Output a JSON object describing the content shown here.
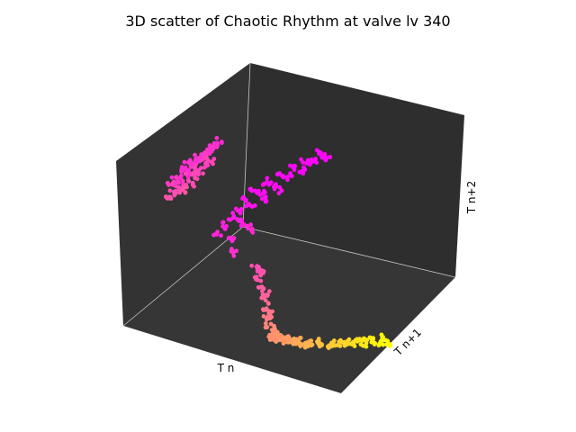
{
  "chart_data": {
    "type": "scatter",
    "projection": "3d",
    "title": "3D scatter of Chaotic Rhythm at valve lv 340",
    "xlabel": "T n",
    "ylabel": "T n+1",
    "zlabel": "T n+2",
    "tick_labels_shown": false,
    "pane_color": "#333333",
    "grid": false,
    "colormap": "spring",
    "colormap_stops": [
      "#ff00ff",
      "#ff8080",
      "#ffff00"
    ],
    "series": [
      {
        "cluster": "left-sheet",
        "points": [
          [
            0.1,
            0.42,
            0.78,
            0.18
          ],
          [
            0.12,
            0.44,
            0.8,
            0.2
          ],
          [
            0.14,
            0.46,
            0.82,
            0.22
          ],
          [
            0.16,
            0.48,
            0.84,
            0.2
          ],
          [
            0.08,
            0.4,
            0.74,
            0.16
          ],
          [
            0.06,
            0.38,
            0.7,
            0.18
          ],
          [
            0.11,
            0.43,
            0.76,
            0.21
          ],
          [
            0.13,
            0.45,
            0.79,
            0.19
          ],
          [
            0.15,
            0.47,
            0.81,
            0.23
          ],
          [
            0.09,
            0.41,
            0.72,
            0.17
          ],
          [
            0.07,
            0.39,
            0.68,
            0.22
          ],
          [
            0.05,
            0.36,
            0.66,
            0.24
          ],
          [
            0.12,
            0.44,
            0.73,
            0.25
          ],
          [
            0.1,
            0.42,
            0.7,
            0.26
          ],
          [
            0.14,
            0.46,
            0.76,
            0.24
          ],
          [
            0.16,
            0.49,
            0.78,
            0.27
          ],
          [
            0.08,
            0.37,
            0.64,
            0.28
          ],
          [
            0.06,
            0.35,
            0.62,
            0.3
          ],
          [
            0.11,
            0.4,
            0.67,
            0.29
          ],
          [
            0.13,
            0.43,
            0.71,
            0.28
          ],
          [
            0.17,
            0.5,
            0.86,
            0.19
          ],
          [
            0.18,
            0.51,
            0.88,
            0.18
          ],
          [
            0.04,
            0.34,
            0.6,
            0.32
          ],
          [
            0.09,
            0.38,
            0.63,
            0.33
          ]
        ]
      },
      {
        "cluster": "middle-sheet",
        "points": [
          [
            0.3,
            0.58,
            0.6,
            0.05
          ],
          [
            0.34,
            0.62,
            0.64,
            0.04
          ],
          [
            0.38,
            0.66,
            0.68,
            0.03
          ],
          [
            0.42,
            0.7,
            0.72,
            0.02
          ],
          [
            0.46,
            0.74,
            0.75,
            0.03
          ],
          [
            0.5,
            0.78,
            0.78,
            0.02
          ],
          [
            0.28,
            0.55,
            0.55,
            0.06
          ],
          [
            0.26,
            0.52,
            0.5,
            0.08
          ],
          [
            0.32,
            0.6,
            0.58,
            0.05
          ],
          [
            0.36,
            0.64,
            0.62,
            0.04
          ],
          [
            0.4,
            0.68,
            0.66,
            0.03
          ],
          [
            0.44,
            0.72,
            0.7,
            0.02
          ],
          [
            0.48,
            0.76,
            0.73,
            0.01
          ],
          [
            0.52,
            0.8,
            0.76,
            0.02
          ],
          [
            0.24,
            0.5,
            0.46,
            0.1
          ],
          [
            0.22,
            0.47,
            0.42,
            0.12
          ],
          [
            0.3,
            0.55,
            0.52,
            0.07
          ],
          [
            0.34,
            0.59,
            0.56,
            0.06
          ],
          [
            0.38,
            0.63,
            0.6,
            0.05
          ],
          [
            0.2,
            0.44,
            0.38,
            0.14
          ],
          [
            0.28,
            0.5,
            0.44,
            0.11
          ],
          [
            0.25,
            0.46,
            0.36,
            0.15
          ],
          [
            0.31,
            0.52,
            0.4,
            0.16
          ],
          [
            0.27,
            0.44,
            0.3,
            0.2
          ]
        ]
      },
      {
        "cluster": "descending-trail",
        "points": [
          [
            0.4,
            0.4,
            0.28,
            0.3
          ],
          [
            0.42,
            0.38,
            0.24,
            0.33
          ],
          [
            0.44,
            0.36,
            0.2,
            0.36
          ],
          [
            0.46,
            0.34,
            0.16,
            0.4
          ],
          [
            0.48,
            0.32,
            0.12,
            0.44
          ],
          [
            0.5,
            0.3,
            0.08,
            0.48
          ],
          [
            0.52,
            0.28,
            0.05,
            0.52
          ],
          [
            0.54,
            0.27,
            0.03,
            0.55
          ],
          [
            0.43,
            0.39,
            0.26,
            0.32
          ],
          [
            0.47,
            0.35,
            0.18,
            0.38
          ],
          [
            0.51,
            0.31,
            0.1,
            0.46
          ]
        ]
      },
      {
        "cluster": "lower-arm",
        "points": [
          [
            0.55,
            0.25,
            0.02,
            0.56
          ],
          [
            0.58,
            0.24,
            0.02,
            0.58
          ],
          [
            0.62,
            0.24,
            0.02,
            0.62
          ],
          [
            0.66,
            0.25,
            0.02,
            0.66
          ],
          [
            0.7,
            0.26,
            0.02,
            0.7
          ],
          [
            0.74,
            0.28,
            0.03,
            0.74
          ],
          [
            0.78,
            0.3,
            0.03,
            0.78
          ],
          [
            0.82,
            0.32,
            0.04,
            0.82
          ],
          [
            0.86,
            0.34,
            0.05,
            0.86
          ],
          [
            0.9,
            0.36,
            0.06,
            0.9
          ],
          [
            0.94,
            0.38,
            0.07,
            0.94
          ],
          [
            0.98,
            0.4,
            0.08,
            0.98
          ],
          [
            0.56,
            0.23,
            0.03,
            0.57
          ],
          [
            0.6,
            0.22,
            0.03,
            0.6
          ],
          [
            0.64,
            0.23,
            0.03,
            0.64
          ],
          [
            0.68,
            0.24,
            0.03,
            0.68
          ],
          [
            0.72,
            0.26,
            0.04,
            0.72
          ],
          [
            0.76,
            0.27,
            0.04,
            0.76
          ],
          [
            0.8,
            0.29,
            0.05,
            0.8
          ],
          [
            0.84,
            0.31,
            0.05,
            0.84
          ],
          [
            0.88,
            0.33,
            0.06,
            0.88
          ],
          [
            0.92,
            0.35,
            0.06,
            0.92
          ],
          [
            0.96,
            0.37,
            0.07,
            0.96
          ],
          [
            1.0,
            0.39,
            0.08,
            1.0
          ],
          [
            0.57,
            0.26,
            0.01,
            0.58
          ],
          [
            0.61,
            0.26,
            0.01,
            0.61
          ],
          [
            0.65,
            0.27,
            0.02,
            0.65
          ],
          [
            0.69,
            0.28,
            0.02,
            0.69
          ]
        ]
      }
    ]
  }
}
